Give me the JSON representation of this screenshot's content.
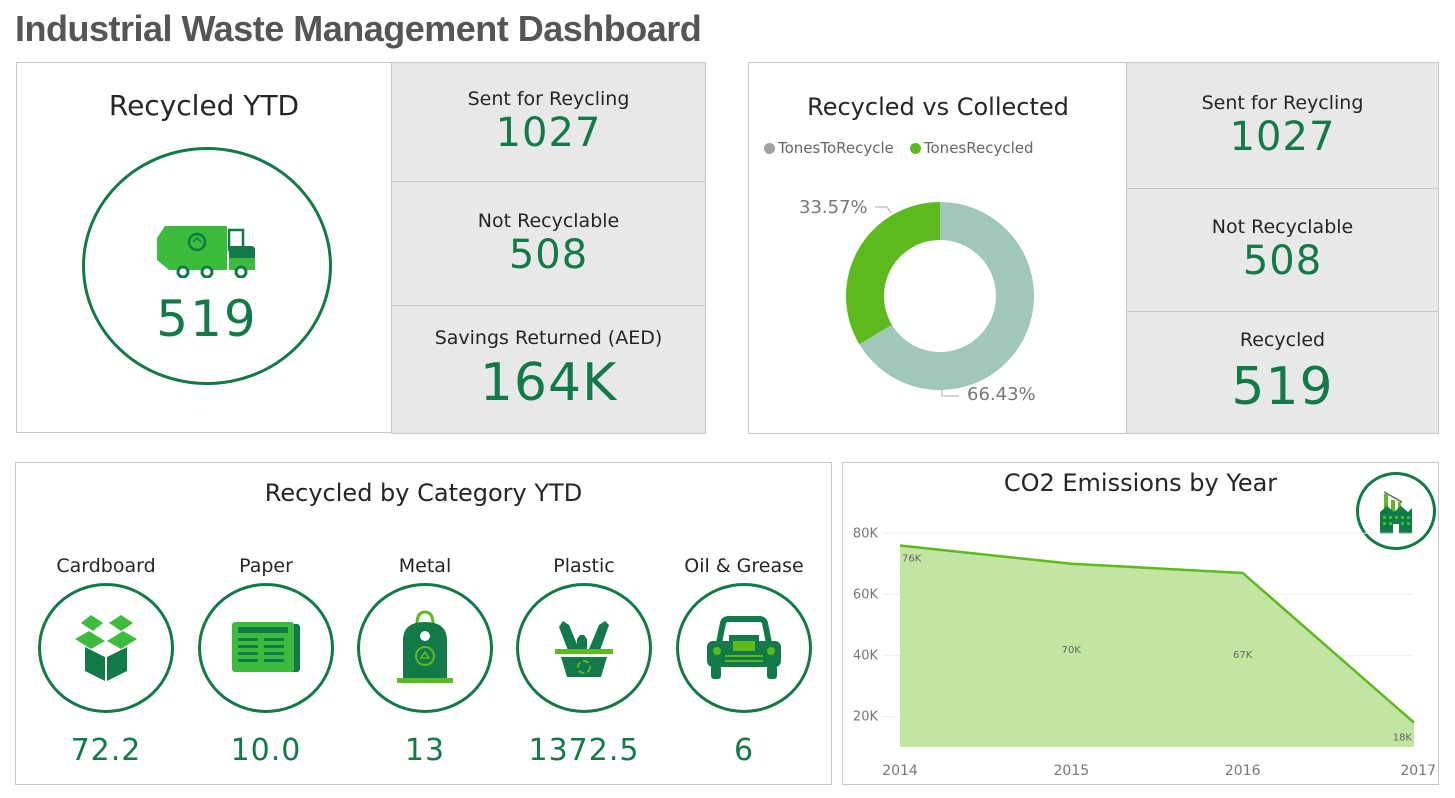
{
  "page": {
    "title": "Industrial Waste Management Dashboard"
  },
  "colors": {
    "brand_green": "#127a48",
    "accent_green": "#5cb91e",
    "light_green": "#3dbb3d",
    "grey_teal": "#9fc8b8",
    "area_fill": "#c2e5a1",
    "kpi_bg": "#e8e8e8"
  },
  "recycled_ytd": {
    "title": "Recycled YTD",
    "icon": "garbage-truck-icon",
    "value": "519"
  },
  "kpi_left": [
    {
      "label": "Sent for Reycling",
      "value": "1027"
    },
    {
      "label": "Not Recyclable",
      "value": "508"
    },
    {
      "label": "Savings Returned (AED)",
      "value": "164K"
    }
  ],
  "donut": {
    "title": "Recycled vs Collected",
    "legend": [
      {
        "label": "TonesToRecycle",
        "color": "#a0a0a0"
      },
      {
        "label": "TonesRecycled",
        "color": "#5cb91e"
      }
    ]
  },
  "kpi_right": [
    {
      "label": "Sent for Reycling",
      "value": "1027"
    },
    {
      "label": "Not Recyclable",
      "value": "508"
    },
    {
      "label": "Recycled",
      "value": "519"
    }
  ],
  "categories": {
    "title": "Recycled by Category YTD",
    "items": [
      {
        "label": "Cardboard",
        "value": "72.2",
        "icon": "cardboard-box-icon"
      },
      {
        "label": "Paper",
        "value": "10.0",
        "icon": "newspaper-icon"
      },
      {
        "label": "Metal",
        "value": "13",
        "icon": "metal-bin-icon"
      },
      {
        "label": "Plastic",
        "value": "1372.5",
        "icon": "plastic-bottles-basket-icon"
      },
      {
        "label": "Oil & Grease",
        "value": "6",
        "icon": "car-icon"
      }
    ]
  },
  "chart_data": [
    {
      "type": "pie",
      "title": "Recycled vs Collected",
      "donut": true,
      "categories": [
        "TonesToRecycle",
        "TonesRecycled"
      ],
      "values": [
        66.43,
        33.57
      ],
      "labels": [
        "66.43%",
        "33.57%"
      ],
      "colors": [
        "#9fc8b8",
        "#5cb91e"
      ],
      "legend": "top-left"
    },
    {
      "type": "area",
      "title": "CO2 Emissions by Year",
      "categories": [
        "2014",
        "2015",
        "2016",
        "2017"
      ],
      "values": [
        76000,
        70000,
        67000,
        18000
      ],
      "labels": [
        "76K",
        "70K",
        "67K",
        "18K"
      ],
      "yticks": [
        "20K",
        "40K",
        "60K",
        "80K"
      ],
      "ytick_values": [
        20000,
        40000,
        60000,
        80000
      ],
      "ylim": [
        10000,
        85000
      ],
      "xlabel": "",
      "ylabel": "",
      "grid": true,
      "icon": "factory-icon"
    }
  ]
}
